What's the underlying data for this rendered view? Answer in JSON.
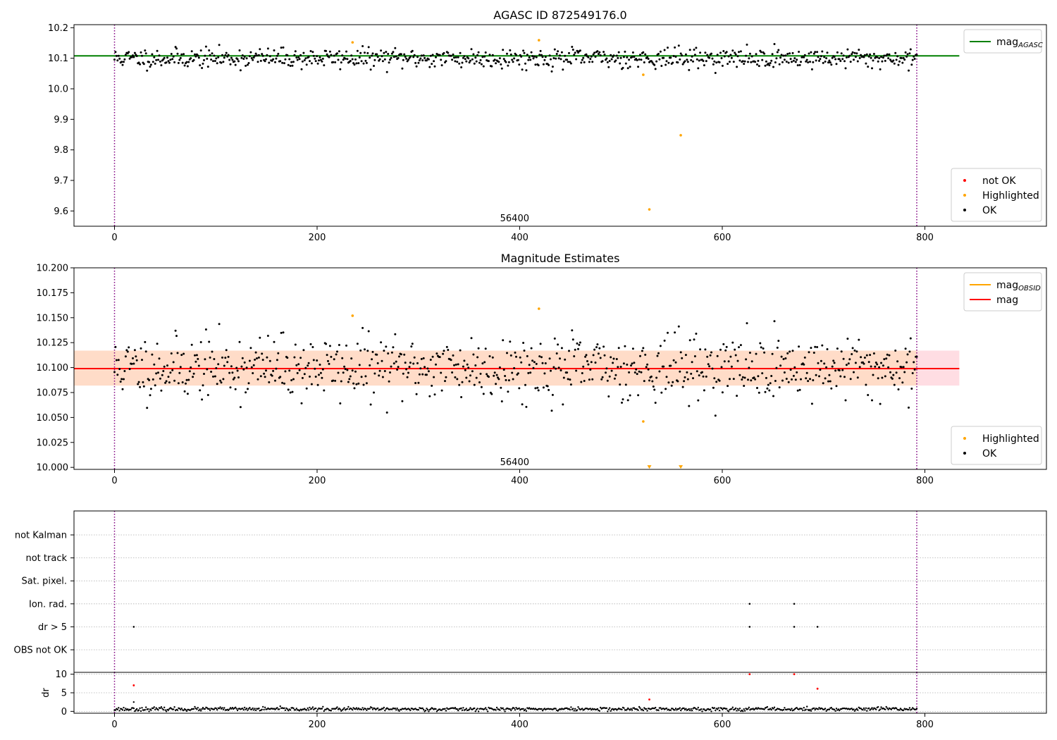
{
  "chart_data": [
    {
      "type": "scatter",
      "title": "AGASC ID 872549176.0",
      "xlim": [
        -40,
        920
      ],
      "ylim": [
        9.55,
        10.21
      ],
      "yticks": [
        9.6,
        9.7,
        9.8,
        9.9,
        10.0,
        10.1,
        10.2
      ],
      "yticks_text": [
        "9.6",
        "9.7",
        "9.8",
        "9.9",
        "10.0",
        "10.1",
        "10.2"
      ],
      "xticks": [
        0,
        200,
        400,
        600,
        800
      ],
      "xticks_text": [
        "0",
        "200",
        "400",
        "600",
        "800"
      ],
      "annotation": {
        "text": "56400",
        "x": 395,
        "y": 9.575
      },
      "vlines": [
        0,
        792
      ],
      "mag_line": {
        "value": 10.108,
        "x_range": [
          -40,
          834
        ],
        "color": "#008000"
      },
      "legend_top": [
        {
          "label": "mag",
          "sub": "AGASC",
          "color": "#008000"
        }
      ],
      "legend_bottom": [
        {
          "label": "not OK",
          "color": "#ff0000"
        },
        {
          "label": "Highlighted",
          "color": "#ffa500"
        },
        {
          "label": "OK",
          "color": "#000000"
        }
      ],
      "ok_series": {
        "n": 790,
        "x_range": [
          0,
          792
        ],
        "center": 10.1,
        "spread": 0.016,
        "seed": 11
      },
      "highlighted": [
        {
          "x": 235,
          "y": 10.152
        },
        {
          "x": 419,
          "y": 10.159
        },
        {
          "x": 522,
          "y": 10.046
        },
        {
          "x": 528,
          "y": 9.605
        },
        {
          "x": 559,
          "y": 9.848
        }
      ]
    },
    {
      "type": "scatter",
      "title": "Magnitude Estimates",
      "xlim": [
        -40,
        920
      ],
      "ylim": [
        9.998,
        10.2
      ],
      "yticks": [
        10.0,
        10.025,
        10.05,
        10.075,
        10.1,
        10.125,
        10.15,
        10.175,
        10.2
      ],
      "yticks_text": [
        "10.000",
        "10.025",
        "10.050",
        "10.075",
        "10.100",
        "10.125",
        "10.150",
        "10.175",
        "10.200"
      ],
      "xticks": [
        0,
        200,
        400,
        600,
        800
      ],
      "xticks_text": [
        "0",
        "200",
        "400",
        "600",
        "800"
      ],
      "annotation": {
        "text": "56400",
        "x": 395,
        "y": 10.005
      },
      "vlines": [
        0,
        792
      ],
      "mag_line": {
        "value": 10.099,
        "x_range": [
          -40,
          834
        ],
        "color": "#ff0000"
      },
      "band_obsid": {
        "low": 10.082,
        "high": 10.117,
        "x_range": [
          -40,
          792
        ],
        "color": "#ffdcc8"
      },
      "band_mag": {
        "low": 10.082,
        "high": 10.117,
        "x_range": [
          -40,
          834
        ],
        "color": "#ffdde3"
      },
      "legend_top": [
        {
          "label": "mag",
          "sub": "OBSID",
          "color": "#ffa500"
        },
        {
          "label": "mag",
          "sub": "",
          "color": "#ff0000"
        }
      ],
      "legend_bottom": [
        {
          "label": "Highlighted",
          "color": "#ffa500"
        },
        {
          "label": "OK",
          "color": "#000000"
        }
      ],
      "ok_series": {
        "n": 790,
        "x_range": [
          0,
          792
        ],
        "center": 10.1,
        "spread": 0.016,
        "seed": 11
      },
      "highlighted": [
        {
          "x": 235,
          "y": 10.152
        },
        {
          "x": 419,
          "y": 10.159
        },
        {
          "x": 522,
          "y": 10.046
        }
      ],
      "off_scale_markers": [
        {
          "x": 528,
          "y": 10.0
        },
        {
          "x": 559,
          "y": 10.0
        }
      ]
    },
    {
      "type": "scatter",
      "title": "",
      "xlim": [
        -40,
        920
      ],
      "ylabel": "dr",
      "flag_categories": [
        "not Kalman",
        "not track",
        "Sat. pixel.",
        "Ion. rad.",
        "dr > 5",
        "OBS not OK"
      ],
      "vlines": [
        0,
        792
      ],
      "flag_points": [
        {
          "category": "Ion. rad.",
          "x": 627
        },
        {
          "category": "Ion. rad.",
          "x": 671
        },
        {
          "category": "dr > 5",
          "x": 19
        },
        {
          "category": "dr > 5",
          "x": 627
        },
        {
          "category": "dr > 5",
          "x": 671
        },
        {
          "category": "dr > 5",
          "x": 694
        }
      ],
      "dr_ylim": [
        -0.5,
        10.5
      ],
      "dr_yticks": [
        0,
        5,
        10
      ],
      "dr_yticks_text": [
        "0",
        "5",
        "10"
      ],
      "xticks": [
        0,
        200,
        400,
        600,
        800
      ],
      "xticks_text": [
        "0",
        "200",
        "400",
        "600",
        "800"
      ],
      "dr_series": {
        "n": 790,
        "x_range": [
          0,
          792
        ],
        "center": 0.6,
        "spread": 0.25,
        "seed": 23
      },
      "dr_outliers_red": [
        {
          "x": 19,
          "y": 7.0
        },
        {
          "x": 528,
          "y": 3.2
        },
        {
          "x": 627,
          "y": 10.0
        },
        {
          "x": 671,
          "y": 10.0
        },
        {
          "x": 694,
          "y": 6.1
        }
      ],
      "dr_outliers_black": [
        {
          "x": 19,
          "y": 2.5
        }
      ]
    }
  ]
}
